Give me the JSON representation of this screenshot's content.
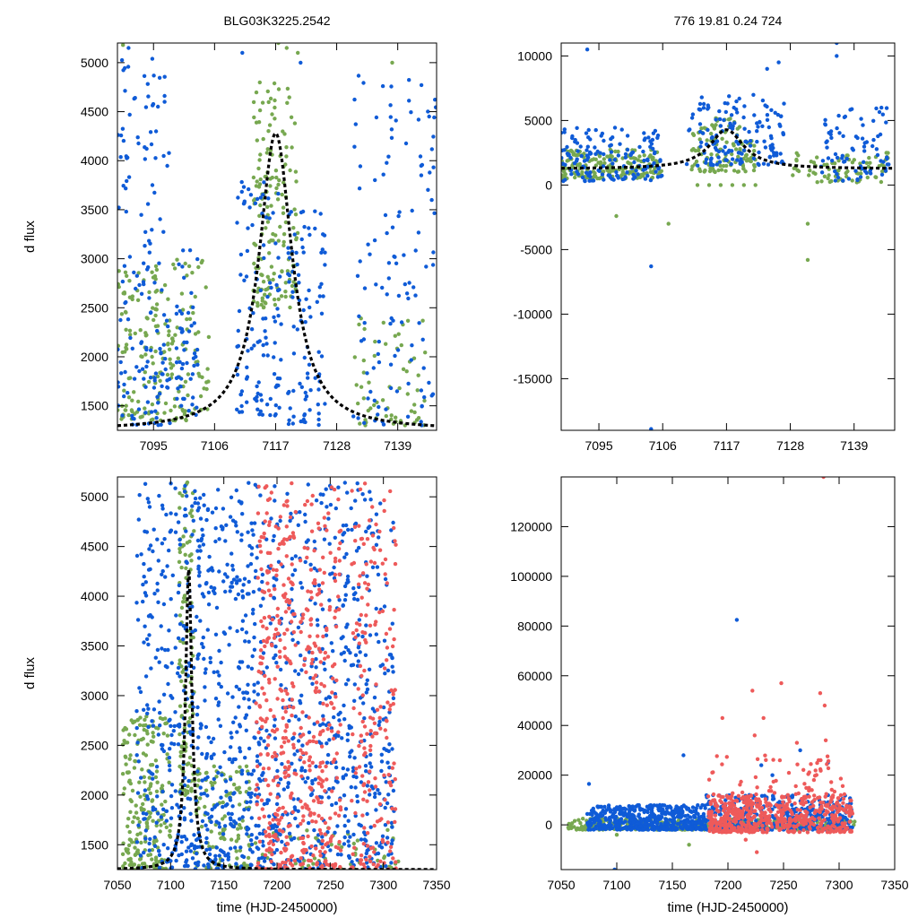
{
  "colors": {
    "green": "#77a850",
    "blue": "#0f5bd7",
    "red": "#ee5a5a",
    "fit": "#000000"
  },
  "chart_data": [
    {
      "id": "top-left",
      "type": "scatter",
      "title": "BLG03K3225.2542",
      "xlabel": "",
      "ylabel": "d flux",
      "xlim": [
        7088.5,
        7146
      ],
      "ylim": [
        1250,
        5200
      ],
      "xticks": [
        7095,
        7106,
        7117,
        7128,
        7139
      ],
      "yticks": [
        1500,
        2000,
        2500,
        3000,
        3500,
        4000,
        4500,
        5000
      ],
      "grid": false,
      "legend": "none",
      "model": {
        "name": "microlensing fit",
        "t0": 7117,
        "peak": 4280,
        "baseline": 1250,
        "width": 3.6
      },
      "series": [
        {
          "name": "green",
          "seed": 11,
          "n": 420,
          "clusters": [
            [
              7088.5,
              7105,
              1350,
              3000,
              200
            ],
            [
              7113,
              7121,
              2500,
              4800,
              160
            ],
            [
              7131,
              7144,
              1300,
              2400,
              60
            ]
          ],
          "outliers": [
            [
              7117.5,
              5200
            ],
            [
              7119,
              5150
            ],
            [
              7121,
              5100
            ],
            [
              7138,
              5000
            ],
            [
              7089.5,
              5180
            ]
          ]
        },
        {
          "name": "blue",
          "seed": 23,
          "n": 420,
          "clusters": [
            [
              7088.5,
              7098,
              1300,
              5100,
              150
            ],
            [
              7099,
              7103,
              1400,
              3100,
              50
            ],
            [
              7110,
              7118,
              1400,
              3800,
              110
            ],
            [
              7119,
              7126,
              1300,
              3500,
              90
            ],
            [
              7131,
              7146,
              1300,
              4900,
              120
            ]
          ],
          "outliers": [
            [
              7090.5,
              5150
            ],
            [
              7097,
              4600
            ],
            [
              7111,
              5100
            ],
            [
              7121.5,
              5000
            ],
            [
              7100,
              1500
            ]
          ]
        }
      ]
    },
    {
      "id": "top-right",
      "type": "scatter",
      "title": "776  19.81  0.24  724",
      "xlabel": "",
      "ylabel": "",
      "xlim": [
        7088.5,
        7146
      ],
      "ylim": [
        -19000,
        11000
      ],
      "xticks": [
        7095,
        7106,
        7117,
        7128,
        7139
      ],
      "yticks": [
        -15000,
        -10000,
        -5000,
        0,
        5000,
        10000
      ],
      "grid": false,
      "legend": "none",
      "model": {
        "name": "microlensing fit",
        "t0": 7117,
        "peak": 4280,
        "baseline": 1250,
        "width": 3.6
      },
      "series": [
        {
          "name": "green",
          "seed": 31,
          "n": 380,
          "clusters": [
            [
              7088.5,
              7106,
              500,
              2800,
              180
            ],
            [
              7111,
              7122,
              1000,
              5200,
              120
            ],
            [
              7128,
              7145,
              200,
              2500,
              80
            ]
          ],
          "outliers": [
            [
              7098,
              -2400
            ],
            [
              7107,
              -3000
            ],
            [
              7131,
              -5800
            ],
            [
              7131,
              -3000
            ],
            [
              7112,
              0
            ],
            [
              7114,
              0
            ],
            [
              7116,
              0
            ],
            [
              7118,
              0
            ],
            [
              7120,
              0
            ],
            [
              7122,
              0
            ]
          ]
        },
        {
          "name": "blue",
          "seed": 41,
          "n": 380,
          "clusters": [
            [
              7088.5,
              7106,
              300,
              4500,
              150
            ],
            [
              7110,
              7127,
              1500,
              7000,
              150
            ],
            [
              7133,
              7145,
              300,
              6000,
              80
            ]
          ],
          "outliers": [
            [
              7104,
              -6300
            ],
            [
              7104,
              -18900
            ],
            [
              7136,
              11000
            ],
            [
              7093,
              10500
            ],
            [
              7126,
              9500
            ],
            [
              7124,
              9000
            ],
            [
              7136,
              10000
            ]
          ]
        }
      ]
    },
    {
      "id": "bottom-left",
      "type": "scatter",
      "title": "",
      "xlabel": "time (HJD-2450000)",
      "ylabel": "d flux",
      "xlim": [
        7050,
        7350
      ],
      "ylim": [
        1250,
        5200
      ],
      "xticks": [
        7050,
        7100,
        7150,
        7200,
        7250,
        7300,
        7350
      ],
      "yticks": [
        1500,
        2000,
        2500,
        3000,
        3500,
        4000,
        4500,
        5000
      ],
      "grid": false,
      "legend": "none",
      "model": {
        "name": "microlensing fit",
        "t0": 7117,
        "peak": 4280,
        "baseline": 1250,
        "width": 3.6
      },
      "series": [
        {
          "name": "green",
          "seed": 51,
          "n": 520,
          "clusters": [
            [
              7055,
              7100,
              1250,
              2800,
              220
            ],
            [
              7108,
              7122,
              2000,
              5150,
              120
            ],
            [
              7122,
              7175,
              1250,
              2300,
              120
            ],
            [
              7175,
              7315,
              1250,
              1700,
              60
            ]
          ],
          "outliers": []
        },
        {
          "name": "blue",
          "seed": 61,
          "n": 1250,
          "clusters": [
            [
              7068,
              7110,
              1250,
              5150,
              200
            ],
            [
              7110,
              7180,
              1250,
              5150,
              420
            ],
            [
              7180,
              7310,
              1250,
              5150,
              630
            ]
          ],
          "outliers": []
        },
        {
          "name": "red",
          "seed": 71,
          "n": 700,
          "clusters": [
            [
              7180,
              7218,
              1250,
              5150,
              280
            ],
            [
              7222,
              7260,
              1250,
              5150,
              240
            ],
            [
              7270,
              7312,
              1250,
              5150,
              180
            ]
          ],
          "outliers": []
        }
      ]
    },
    {
      "id": "bottom-right",
      "type": "scatter",
      "title": "",
      "xlabel": "time (HJD-2450000)",
      "ylabel": "",
      "xlim": [
        7050,
        7350
      ],
      "ylim": [
        -18000,
        140000
      ],
      "xticks": [
        7050,
        7100,
        7150,
        7200,
        7250,
        7300,
        7350
      ],
      "yticks": [
        0,
        20000,
        40000,
        60000,
        80000,
        100000,
        120000
      ],
      "grid": false,
      "legend": "none",
      "model": null,
      "series": [
        {
          "name": "green",
          "seed": 81,
          "n": 420,
          "clusters": [
            [
              7055,
              7315,
              -2000,
              2500,
              420
            ]
          ],
          "outliers": [
            [
              7165,
              -8000
            ],
            [
              7100,
              -4000
            ]
          ]
        },
        {
          "name": "blue",
          "seed": 91,
          "n": 900,
          "clusters": [
            [
              7073,
              7180,
              -2000,
              8000,
              500
            ],
            [
              7180,
              7312,
              -2000,
              12000,
              400
            ]
          ],
          "outliers": [
            [
              7208,
              82500
            ],
            [
              7075,
              16500
            ],
            [
              7290,
              25000
            ],
            [
              7265,
              30000
            ],
            [
              7240,
              20000
            ],
            [
              7230,
              24000
            ],
            [
              7160,
              28000
            ],
            [
              7098,
              -18000
            ]
          ]
        },
        {
          "name": "red",
          "seed": 101,
          "n": 620,
          "clusters": [
            [
              7182,
              7240,
              -3000,
              12000,
              300
            ],
            [
              7242,
              7312,
              -3000,
              12000,
              260
            ],
            [
              7182,
              7310,
              12000,
              28000,
              60
            ]
          ],
          "outliers": [
            [
              7286,
              140000
            ],
            [
              7248,
              57000
            ],
            [
              7222,
              54000
            ],
            [
              7232,
              43000
            ],
            [
              7195,
              43000
            ],
            [
              7283,
              53000
            ],
            [
              7287,
              48000
            ],
            [
              7224,
              36000
            ],
            [
              7262,
              33000
            ],
            [
              7288,
              34000
            ],
            [
              7226,
              -11000
            ],
            [
              7216,
              -6000
            ]
          ]
        }
      ]
    }
  ]
}
